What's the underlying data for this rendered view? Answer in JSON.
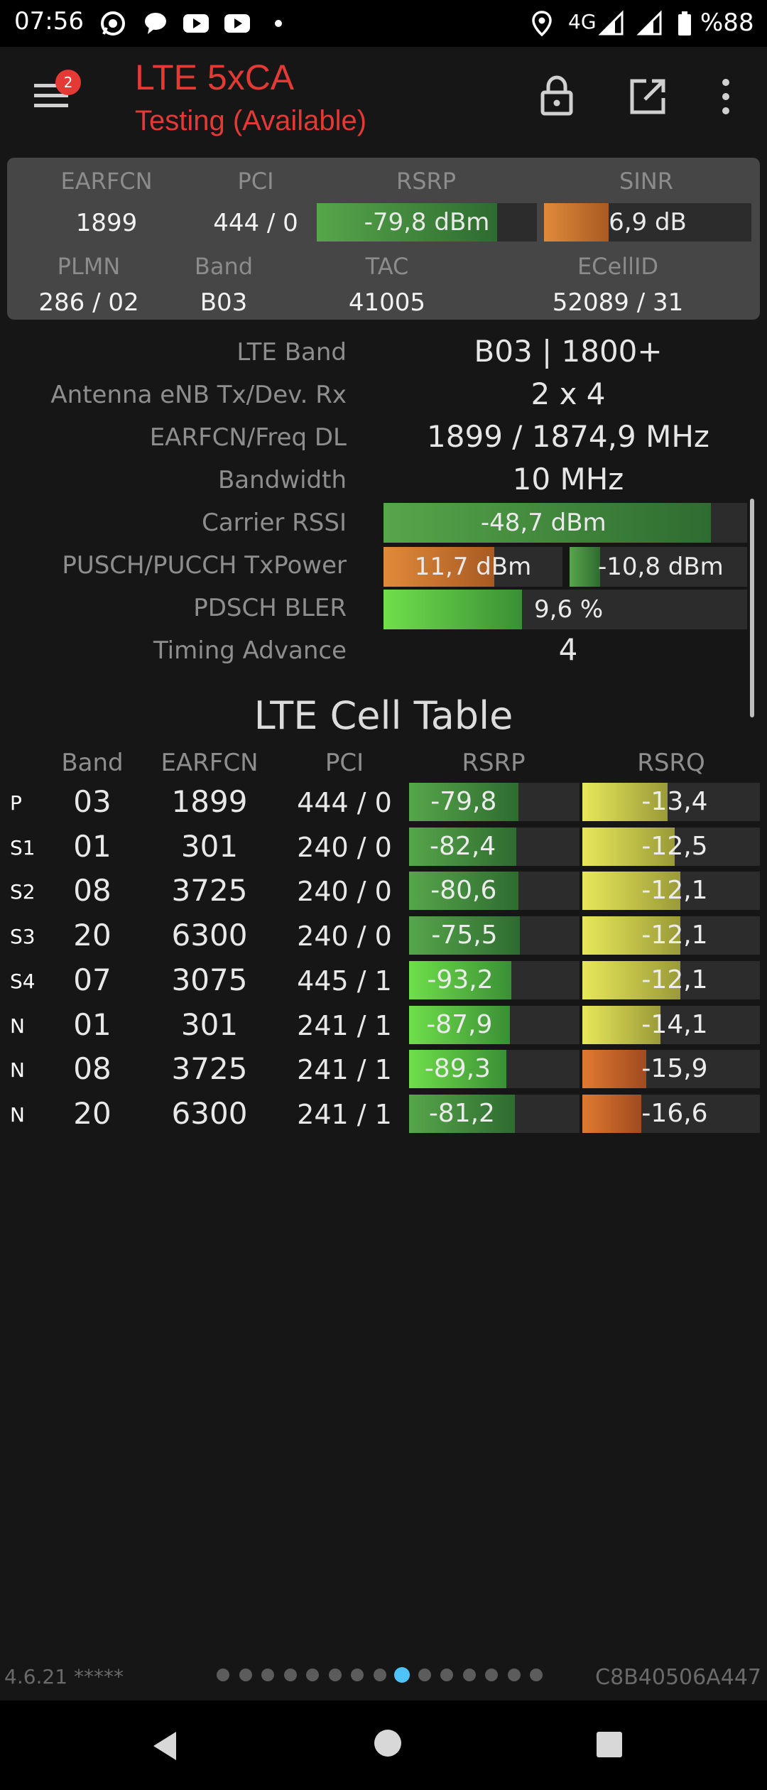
{
  "status_bar": {
    "time": "07:56",
    "network": "4G",
    "battery": "%88",
    "icons": [
      "whatsapp-icon",
      "chat-icon",
      "youtube-icon",
      "youtube-icon",
      "dot-icon",
      "location-icon",
      "signal-icon",
      "signal-icon",
      "battery-icon"
    ]
  },
  "toolbar": {
    "title": "LTE 5xCA",
    "subtitle": "Testing (Available)",
    "menu_badge": "2",
    "icons": [
      "menu-icon",
      "lock-icon",
      "open-external-icon",
      "more-vert-icon"
    ]
  },
  "summary": {
    "headers": {
      "earfcn": "EARFCN",
      "pci": "PCI",
      "rsrp": "RSRP",
      "sinr": "SINR"
    },
    "earfcn": "1899",
    "pci": "444 / 0",
    "rsrp": "-79,8 dBm",
    "rsrp_level": 0.82,
    "sinr": "6,9 dB",
    "sinr_level": 0.31,
    "headers2": {
      "plmn": "PLMN",
      "band": "Band",
      "tac": "TAC",
      "ecellid": "ECellID"
    },
    "plmn": "286 / 02",
    "band": "B03",
    "tac": "41005",
    "ecellid": "52089 / 31"
  },
  "details": {
    "lte_band_label": "LTE Band",
    "lte_band": "B03 | 1800+",
    "antenna_label": "Antenna eNB Tx/Dev. Rx",
    "antenna": "2 x 4",
    "earfcn_label": "EARFCN/Freq DL",
    "earfcn": "1899 / 1874,9 MHz",
    "bandwidth_label": "Bandwidth",
    "bandwidth": "10 MHz",
    "rssi_label": "Carrier RSSI",
    "rssi": "-48,7 dBm",
    "rssi_level": 0.9,
    "txpower_label": "PUSCH/PUCCH TxPower",
    "pusch": "11,7 dBm",
    "pusch_level": 0.62,
    "pucch": "-10,8 dBm",
    "pucch_level": 0.17,
    "bler_label": "PDSCH BLER",
    "bler": "9,6 %",
    "bler_level": 0.38,
    "ta_label": "Timing Advance",
    "ta": "4"
  },
  "cell_table": {
    "title": "LTE Cell Table",
    "headers": {
      "band": "Band",
      "earfcn": "EARFCN",
      "pci": "PCI",
      "rsrp": "RSRP",
      "rsrq": "RSRQ"
    },
    "rows": [
      {
        "tag": "P",
        "band": "03",
        "earfcn": "1899",
        "pci": "444 / 0",
        "rsrp": "-79,8",
        "rsrp_level": 0.64,
        "rsrq": "-13,4",
        "rsrq_level": 0.48
      },
      {
        "tag": "S1",
        "band": "01",
        "earfcn": "301",
        "pci": "240 / 0",
        "rsrp": "-82,4",
        "rsrp_level": 0.63,
        "rsrq": "-12,5",
        "rsrq_level": 0.52
      },
      {
        "tag": "S2",
        "band": "08",
        "earfcn": "3725",
        "pci": "240 / 0",
        "rsrp": "-80,6",
        "rsrp_level": 0.64,
        "rsrq": "-12,1",
        "rsrq_level": 0.55
      },
      {
        "tag": "S3",
        "band": "20",
        "earfcn": "6300",
        "pci": "240 / 0",
        "rsrp": "-75,5",
        "rsrp_level": 0.65,
        "rsrq": "-12,1",
        "rsrq_level": 0.55
      },
      {
        "tag": "S4",
        "band": "07",
        "earfcn": "3075",
        "pci": "445 / 1",
        "rsrp": "-93,2",
        "rsrp_level": 0.6,
        "rsrq": "-12,1",
        "rsrq_level": 0.55
      },
      {
        "tag": "N",
        "band": "01",
        "earfcn": "301",
        "pci": "241 / 1",
        "rsrp": "-87,9",
        "rsrp_level": 0.59,
        "rsrq": "-14,1",
        "rsrq_level": 0.44
      },
      {
        "tag": "N",
        "band": "08",
        "earfcn": "3725",
        "pci": "241 / 1",
        "rsrp": "-89,3",
        "rsrp_level": 0.57,
        "rsrq": "-15,9",
        "rsrq_level": 0.36
      },
      {
        "tag": "N",
        "band": "20",
        "earfcn": "6300",
        "pci": "241 / 1",
        "rsrp": "-81,2",
        "rsrp_level": 0.62,
        "rsrq": "-16,6",
        "rsrq_level": 0.33
      }
    ]
  },
  "footer": {
    "version": "4.6.21 *****",
    "cell_id": "C8B40506A447",
    "page_count": 15,
    "active_page": 8
  },
  "colors": {
    "accent": "#e53935",
    "active_dot": "#4fc3f7",
    "bar_green": "#56a64a",
    "bar_orange": "#e08a3a",
    "bar_yellow": "#e8e85a"
  }
}
